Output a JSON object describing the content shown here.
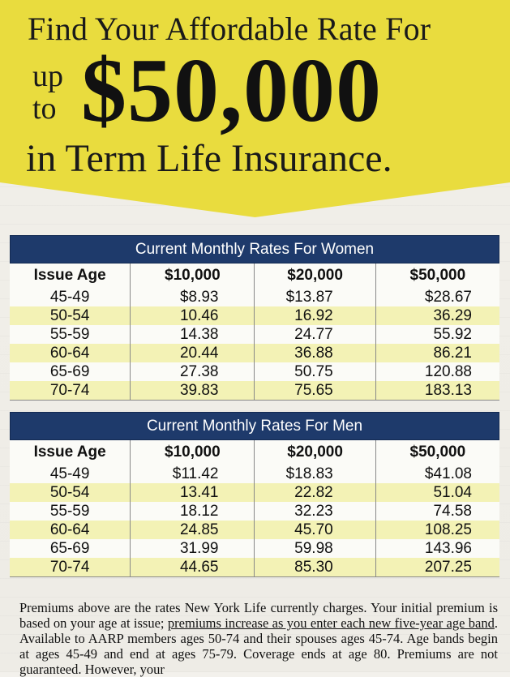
{
  "headline": {
    "line1": "Find Your Affordable Rate For",
    "up": "up",
    "to": "to",
    "amount": "$50,000",
    "line3": "in Term Life Insurance."
  },
  "columns": [
    "Issue Age",
    "$10,000",
    "$20,000",
    "$50,000"
  ],
  "women": {
    "title": "Current Monthly Rates For Women",
    "rows": [
      [
        "45-49",
        "$8.93",
        "$13.87",
        "$28.67"
      ],
      [
        "50-54",
        "10.46",
        "16.92",
        "36.29"
      ],
      [
        "55-59",
        "14.38",
        "24.77",
        "55.92"
      ],
      [
        "60-64",
        "20.44",
        "36.88",
        "86.21"
      ],
      [
        "65-69",
        "27.38",
        "50.75",
        "120.88"
      ],
      [
        "70-74",
        "39.83",
        "75.65",
        "183.13"
      ]
    ]
  },
  "men": {
    "title": "Current Monthly Rates For Men",
    "rows": [
      [
        "45-49",
        "$11.42",
        "$18.83",
        "$41.08"
      ],
      [
        "50-54",
        "13.41",
        "22.82",
        "51.04"
      ],
      [
        "55-59",
        "18.12",
        "32.23",
        "74.58"
      ],
      [
        "60-64",
        "24.85",
        "45.70",
        "108.25"
      ],
      [
        "65-69",
        "31.99",
        "59.98",
        "143.96"
      ],
      [
        "70-74",
        "44.65",
        "85.30",
        "207.25"
      ]
    ]
  },
  "footnote": {
    "part1": "Premiums above are the rates New York Life currently charges. Your initial premium is based on your age at issue; ",
    "underlined": "premiums increase as you enter each new five-year age band",
    "part2": ". Available to AARP members ages 50-74 and their spouses ages 45-74. Age bands begin at ages 45-49 and end at ages 75-79. Coverage ends at age 80. Premiums are not guaranteed. However, your"
  },
  "colors": {
    "banner": "#e9dc3e",
    "table_header": "#1e3a6b",
    "row_band": "#f3f2b5"
  }
}
